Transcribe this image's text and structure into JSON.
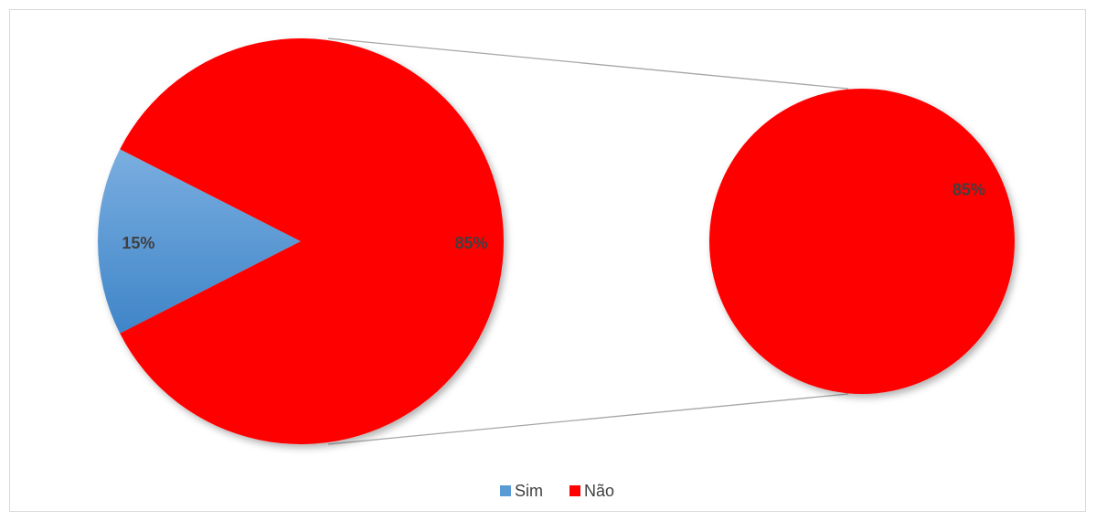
{
  "chart_data": {
    "type": "pie",
    "subtype": "pie-of-pie",
    "title": "",
    "categories": [
      "Sim",
      "Não"
    ],
    "values": [
      15,
      85
    ],
    "unit": "%",
    "main_labels": [
      "15%",
      "85%"
    ],
    "secondary": {
      "categories": [
        "Não"
      ],
      "values": [
        85
      ],
      "labels": [
        "85%"
      ]
    },
    "colors": {
      "Sim": "#5b9bd5",
      "Não": "#ff0000"
    },
    "legend": {
      "position": "bottom",
      "entries": [
        "Sim",
        "Não"
      ]
    }
  }
}
